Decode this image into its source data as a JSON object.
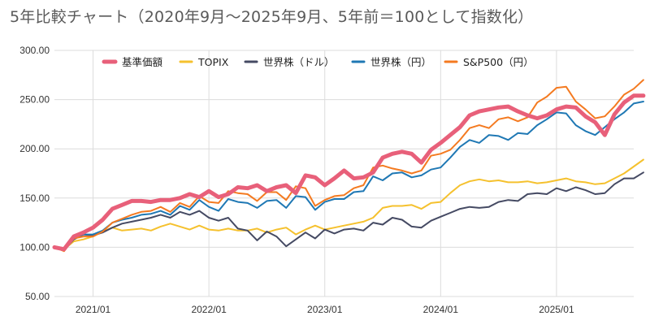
{
  "chart_data": {
    "type": "line",
    "title": "5年比較チャート（2020年9月〜2025年9月、5年前＝100として指数化）",
    "xlabel": "",
    "ylabel": "",
    "ylim": [
      50,
      300
    ],
    "yticks": [
      "50.00",
      "100.00",
      "150.00",
      "200.00",
      "250.00",
      "300.00"
    ],
    "x_start": "2020/09",
    "x_end": "2025/09",
    "xticks": [
      "2021/01",
      "2022/01",
      "2023/01",
      "2024/01",
      "2025/01"
    ],
    "grid": true,
    "legend": "top",
    "series": [
      {
        "name": "基準価額",
        "color": "#e8607a",
        "values": [
          100,
          98,
          111,
          115,
          120,
          128,
          139,
          143,
          147,
          147,
          146,
          148,
          148,
          150,
          154,
          151,
          157,
          151,
          154,
          161,
          160,
          163,
          157,
          161,
          163,
          155,
          173,
          171,
          163,
          170,
          178,
          170,
          171,
          176,
          191,
          195,
          197,
          195,
          186,
          199,
          206,
          214,
          222,
          234,
          238,
          240,
          242,
          243,
          238,
          234,
          231,
          234,
          240,
          243,
          242,
          233,
          227,
          214,
          235,
          247,
          254,
          254
        ]
      },
      {
        "name": "TOPIX",
        "color": "#f5c12e",
        "values": [
          100,
          98,
          106,
          108,
          111,
          116,
          120,
          117,
          118,
          119,
          117,
          121,
          124,
          121,
          118,
          122,
          118,
          117,
          119,
          117,
          117,
          119,
          115,
          118,
          120,
          113,
          118,
          122,
          118,
          120,
          122,
          124,
          126,
          130,
          140,
          142,
          142,
          143,
          139,
          145,
          146,
          155,
          163,
          167,
          169,
          167,
          168,
          166,
          166,
          167,
          165,
          166,
          168,
          170,
          167,
          166,
          164,
          165,
          170,
          175,
          182,
          189
        ]
      },
      {
        "name": "世界株（ドル）",
        "color": "#454a63",
        "values": [
          100,
          97,
          108,
          113,
          112,
          115,
          120,
          124,
          126,
          128,
          130,
          133,
          130,
          136,
          133,
          137,
          130,
          127,
          130,
          119,
          117,
          107,
          116,
          111,
          101,
          108,
          115,
          109,
          118,
          114,
          118,
          119,
          117,
          125,
          123,
          130,
          128,
          121,
          120,
          127,
          131,
          135,
          139,
          141,
          140,
          141,
          146,
          148,
          147,
          154,
          155,
          154,
          160,
          157,
          161,
          158,
          154,
          155,
          164,
          170,
          170,
          176
        ]
      },
      {
        "name": "世界株（円）",
        "color": "#1f78b4",
        "values": [
          100,
          97,
          110,
          113,
          113,
          117,
          125,
          128,
          130,
          133,
          134,
          137,
          133,
          142,
          138,
          148,
          141,
          137,
          149,
          146,
          145,
          140,
          147,
          148,
          140,
          152,
          151,
          138,
          146,
          149,
          149,
          156,
          157,
          172,
          168,
          175,
          176,
          171,
          173,
          179,
          181,
          191,
          202,
          209,
          206,
          214,
          213,
          209,
          216,
          215,
          224,
          230,
          237,
          236,
          224,
          218,
          214,
          222,
          230,
          237,
          246,
          248
        ]
      },
      {
        "name": "S&P500（円）",
        "color": "#f47a20",
        "values": [
          100,
          96,
          109,
          111,
          111,
          116,
          125,
          129,
          133,
          136,
          137,
          141,
          136,
          145,
          141,
          152,
          146,
          145,
          157,
          155,
          154,
          147,
          156,
          156,
          148,
          162,
          160,
          142,
          148,
          152,
          153,
          160,
          163,
          181,
          183,
          180,
          178,
          175,
          178,
          193,
          195,
          199,
          209,
          221,
          224,
          221,
          230,
          232,
          228,
          232,
          247,
          253,
          262,
          263,
          248,
          240,
          231,
          233,
          243,
          255,
          261,
          270
        ]
      }
    ]
  }
}
